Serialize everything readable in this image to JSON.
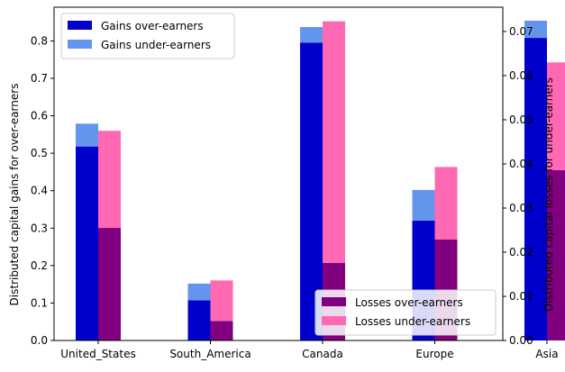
{
  "chart_data": {
    "type": "bar",
    "categories": [
      "United_States",
      "South_America",
      "Canada",
      "Europe",
      "Asia"
    ],
    "left_axis": {
      "label": "Distributed capital gains for over-earners",
      "ylim": [
        0,
        0.89
      ],
      "ticks": [
        "0.0",
        "0.1",
        "0.2",
        "0.3",
        "0.4",
        "0.5",
        "0.6",
        "0.7",
        "0.8"
      ]
    },
    "right_axis": {
      "label": "Distributed capital losses for under-earners",
      "ylim": [
        0,
        0.0755
      ],
      "ticks": [
        "0.00",
        "0.01",
        "0.02",
        "0.03",
        "0.04",
        "0.05",
        "0.06",
        "0.07"
      ]
    },
    "series": [
      {
        "name": "Gains over-earners",
        "axis": "left",
        "color": "#0000cd",
        "values": [
          0.518,
          0.107,
          0.795,
          0.32,
          0.808
        ]
      },
      {
        "name": "Gains under-earners",
        "axis": "left",
        "stacked_on": "Gains over-earners",
        "color": "#6495ed",
        "values": [
          0.061,
          0.045,
          0.042,
          0.082,
          0.046
        ]
      },
      {
        "name": "Losses over-earners",
        "axis": "right",
        "color": "#800080",
        "values": [
          0.0255,
          0.0044,
          0.0176,
          0.0229,
          0.0386
        ]
      },
      {
        "name": "Losses under-earners",
        "axis": "right",
        "stacked_on": "Losses over-earners",
        "color": "#ff69b4",
        "values": [
          0.022,
          0.0092,
          0.0547,
          0.0164,
          0.0244
        ]
      }
    ],
    "legends": [
      {
        "position": "upper-left",
        "entries": [
          "Gains over-earners",
          "Gains under-earners"
        ]
      },
      {
        "position": "lower-right",
        "entries": [
          "Losses over-earners",
          "Losses under-earners"
        ]
      }
    ],
    "grid": false
  }
}
